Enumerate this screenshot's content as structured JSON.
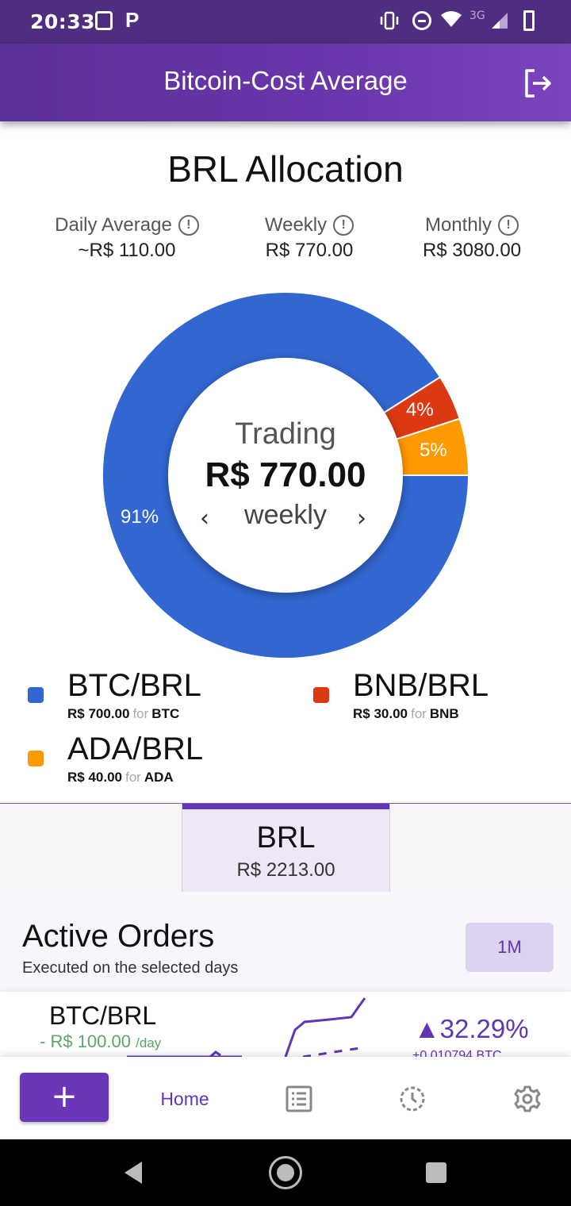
{
  "status_bar": {
    "time": "20:33",
    "network": "3G"
  },
  "app_bar": {
    "title": "Bitcoin-Cost Average"
  },
  "allocation": {
    "title": "BRL Allocation",
    "stats": [
      {
        "label": "Daily Average",
        "value": "~R$ 110.00"
      },
      {
        "label": "Weekly",
        "value": "R$ 770.00"
      },
      {
        "label": "Monthly",
        "value": "R$ 3080.00"
      }
    ],
    "info_glyph": "!",
    "donut_center": {
      "label": "Trading",
      "amount": "R$ 770.00",
      "period": "weekly",
      "prev": "‹",
      "next": "›"
    },
    "slices": [
      {
        "name": "BTC/BRL",
        "percent": 91,
        "label": "91%",
        "color": "#3267d1"
      },
      {
        "name": "BNB/BRL",
        "percent": 4,
        "label": "4%",
        "color": "#dc3912"
      },
      {
        "name": "ADA/BRL",
        "percent": 5,
        "label": "5%",
        "color": "#ff9900"
      }
    ]
  },
  "legend": [
    {
      "pair": "BTC/BRL",
      "amount": "R$ 700.00",
      "for": "for",
      "asset": "BTC",
      "color": "#3267d1"
    },
    {
      "pair": "BNB/BRL",
      "amount": "R$ 30.00",
      "for": "for",
      "asset": "BNB",
      "color": "#dc3912"
    },
    {
      "pair": "ADA/BRL",
      "amount": "R$ 40.00",
      "for": "for",
      "asset": "ADA",
      "color": "#ff9900"
    }
  ],
  "balance_tab": {
    "currency": "BRL",
    "amount": "R$ 2213.00"
  },
  "active_orders": {
    "title": "Active Orders",
    "subtitle": "Executed on the selected days",
    "range_button": "1M",
    "orders": [
      {
        "pair": "BTC/BRL",
        "amount": "- R$ 100.00",
        "per": "/day",
        "change": "▲32.29%",
        "btc_amount": "+0.010794 BTC"
      }
    ]
  },
  "bottom_nav": {
    "add_label": "+",
    "home_label": "Home"
  },
  "colors": {
    "primary": "#5f36b4",
    "appbar": "#6a37ad",
    "positive_green": "#5aa56a"
  }
}
